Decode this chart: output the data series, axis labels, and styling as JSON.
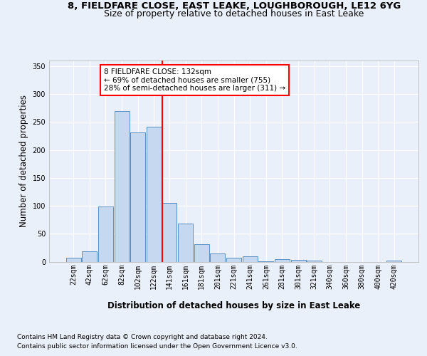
{
  "title_line1": "8, FIELDFARE CLOSE, EAST LEAKE, LOUGHBOROUGH, LE12 6YG",
  "title_line2": "Size of property relative to detached houses in East Leake",
  "xlabel": "Distribution of detached houses by size in East Leake",
  "ylabel": "Number of detached properties",
  "footnote1": "Contains HM Land Registry data © Crown copyright and database right 2024.",
  "footnote2": "Contains public sector information licensed under the Open Government Licence v3.0.",
  "annotation_line1": "8 FIELDFARE CLOSE: 132sqm",
  "annotation_line2": "← 69% of detached houses are smaller (755)",
  "annotation_line3": "28% of semi-detached houses are larger (311) →",
  "bar_color": "#c5d8f0",
  "bar_edge_color": "#5a8fc2",
  "ref_line_x": 132,
  "ref_line_color": "red",
  "categories": [
    22,
    42,
    62,
    82,
    102,
    122,
    141,
    161,
    181,
    201,
    221,
    241,
    261,
    281,
    301,
    321,
    340,
    360,
    380,
    400,
    420
  ],
  "values": [
    7,
    18,
    99,
    269,
    231,
    241,
    105,
    68,
    31,
    15,
    7,
    10,
    1,
    4,
    3,
    2,
    0,
    0,
    0,
    0,
    2
  ],
  "ylim": [
    0,
    360
  ],
  "yticks": [
    0,
    50,
    100,
    150,
    200,
    250,
    300,
    350
  ],
  "bg_color": "#eaf0f9",
  "grid_color": "#ffffff",
  "title_fontsize": 9.5,
  "subtitle_fontsize": 9,
  "axis_label_fontsize": 8.5,
  "tick_fontsize": 7,
  "footnote_fontsize": 6.5,
  "annot_fontsize": 7.5
}
